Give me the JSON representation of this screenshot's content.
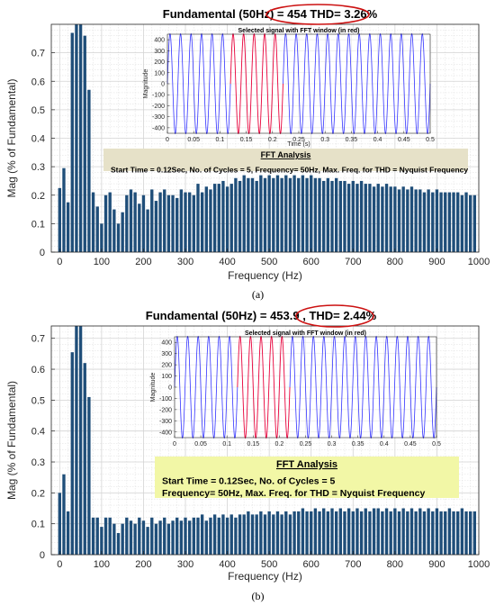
{
  "chart_data": [
    {
      "type": "bar",
      "title_left": "Fundamental (50Hz) = 454",
      "title_thd": "THD= 3.26%",
      "xlabel": "Frequency (Hz)",
      "ylabel": "Mag (% of Fundamental)",
      "xlim": [
        -20,
        1000
      ],
      "ylim": [
        0,
        0.8
      ],
      "xticks": [
        0,
        100,
        200,
        300,
        400,
        500,
        600,
        700,
        800,
        900,
        1000
      ],
      "yticks": [
        0,
        0.1,
        0.2,
        0.3,
        0.4,
        0.5,
        0.6,
        0.7
      ],
      "ytick_labels": [
        "0",
        "0.1",
        "0.2",
        "0.3",
        "0.4",
        "0.5",
        "0.6",
        "0.7"
      ],
      "bar_color": "#1f4e79",
      "grid": true,
      "caption": "(a)",
      "x": [
        0,
        10,
        20,
        30,
        40,
        50,
        60,
        70,
        80,
        90,
        100,
        110,
        120,
        130,
        140,
        150,
        160,
        170,
        180,
        190,
        200,
        210,
        220,
        230,
        240,
        250,
        260,
        270,
        280,
        290,
        300,
        310,
        320,
        330,
        340,
        350,
        360,
        370,
        380,
        390,
        400,
        410,
        420,
        430,
        440,
        450,
        460,
        470,
        480,
        490,
        500,
        510,
        520,
        530,
        540,
        550,
        560,
        570,
        580,
        590,
        600,
        610,
        620,
        630,
        640,
        650,
        660,
        670,
        680,
        690,
        700,
        710,
        720,
        730,
        740,
        750,
        760,
        770,
        780,
        790,
        800,
        810,
        820,
        830,
        840,
        850,
        860,
        870,
        880,
        890,
        900,
        910,
        920,
        930,
        940,
        950,
        960,
        970,
        980,
        990
      ],
      "values": [
        0.225,
        0.295,
        0.175,
        0.77,
        0.8,
        0.8,
        0.76,
        0.57,
        0.21,
        0.16,
        0.1,
        0.2,
        0.21,
        0.15,
        0.1,
        0.14,
        0.2,
        0.22,
        0.21,
        0.17,
        0.2,
        0.15,
        0.22,
        0.18,
        0.21,
        0.22,
        0.2,
        0.2,
        0.19,
        0.22,
        0.21,
        0.21,
        0.2,
        0.24,
        0.21,
        0.23,
        0.22,
        0.24,
        0.24,
        0.25,
        0.23,
        0.24,
        0.26,
        0.25,
        0.27,
        0.26,
        0.26,
        0.25,
        0.27,
        0.26,
        0.27,
        0.26,
        0.27,
        0.26,
        0.27,
        0.26,
        0.27,
        0.26,
        0.27,
        0.26,
        0.27,
        0.26,
        0.26,
        0.25,
        0.26,
        0.25,
        0.26,
        0.25,
        0.25,
        0.24,
        0.25,
        0.24,
        0.25,
        0.24,
        0.24,
        0.23,
        0.24,
        0.23,
        0.24,
        0.23,
        0.23,
        0.22,
        0.23,
        0.22,
        0.23,
        0.22,
        0.22,
        0.21,
        0.22,
        0.21,
        0.22,
        0.21,
        0.21,
        0.21,
        0.21,
        0.21,
        0.2,
        0.21,
        0.2,
        0.2
      ],
      "inset": {
        "title": "Selected signal with FFT window (in red)",
        "xlabel": "Time (s)",
        "ylabel": "Magnitude",
        "xlim": [
          0,
          0.5
        ],
        "ylim": [
          -450,
          450
        ],
        "xticks": [
          0,
          0.05,
          0.1,
          0.15,
          0.2,
          0.25,
          0.3,
          0.35,
          0.4,
          0.45,
          0.5
        ],
        "xtick_labels": [
          "0",
          "0.05",
          "0.1",
          "0.15",
          "0.2",
          "0.25",
          "0.3",
          "0.35",
          "0.4",
          "0.45",
          "0.5"
        ],
        "yticks": [
          -400,
          -300,
          -200,
          -100,
          0,
          100,
          200,
          300,
          400
        ],
        "frequency_hz": 50,
        "amplitude": 454,
        "window": [
          0.12,
          0.22
        ],
        "signal_color": "#3333ff",
        "window_color": "#e8003a"
      },
      "annotation": {
        "title": "FFT Analysis",
        "lines": [
          "Start Time = 0.12Sec, No. of Cycles = 5, Frequency= 50Hz, Max. Freq. for THD = Nyquist Frequency"
        ],
        "bg": "#e6e1c8"
      }
    },
    {
      "type": "bar",
      "title_left": "Fundamental (50Hz) = 453.9 ,",
      "title_thd": "THD= 2.44%",
      "xlabel": "Frequency (Hz)",
      "ylabel": "Mag (% of Fundamental)",
      "xlim": [
        -20,
        1000
      ],
      "ylim": [
        0,
        0.74
      ],
      "xticks": [
        0,
        100,
        200,
        300,
        400,
        500,
        600,
        700,
        800,
        900,
        1000
      ],
      "yticks": [
        0,
        0.1,
        0.2,
        0.3,
        0.4,
        0.5,
        0.6,
        0.7
      ],
      "ytick_labels": [
        "0",
        "0.1",
        "0.2",
        "0.3",
        "0.4",
        "0.5",
        "0.6",
        "0.7"
      ],
      "bar_color": "#1f4e79",
      "grid": true,
      "caption": "(b)",
      "x": [
        0,
        10,
        20,
        30,
        40,
        50,
        60,
        70,
        80,
        90,
        100,
        110,
        120,
        130,
        140,
        150,
        160,
        170,
        180,
        190,
        200,
        210,
        220,
        230,
        240,
        250,
        260,
        270,
        280,
        290,
        300,
        310,
        320,
        330,
        340,
        350,
        360,
        370,
        380,
        390,
        400,
        410,
        420,
        430,
        440,
        450,
        460,
        470,
        480,
        490,
        500,
        510,
        520,
        530,
        540,
        550,
        560,
        570,
        580,
        590,
        600,
        610,
        620,
        630,
        640,
        650,
        660,
        670,
        680,
        690,
        700,
        710,
        720,
        730,
        740,
        750,
        760,
        770,
        780,
        790,
        800,
        810,
        820,
        830,
        840,
        850,
        860,
        870,
        880,
        890,
        900,
        910,
        920,
        930,
        940,
        950,
        960,
        970,
        980,
        990
      ],
      "values": [
        0.2,
        0.26,
        0.14,
        0.655,
        0.74,
        0.74,
        0.62,
        0.51,
        0.12,
        0.12,
        0.09,
        0.12,
        0.12,
        0.1,
        0.07,
        0.1,
        0.12,
        0.11,
        0.1,
        0.12,
        0.11,
        0.09,
        0.12,
        0.1,
        0.11,
        0.12,
        0.1,
        0.11,
        0.12,
        0.11,
        0.12,
        0.11,
        0.12,
        0.12,
        0.13,
        0.11,
        0.12,
        0.13,
        0.12,
        0.13,
        0.12,
        0.13,
        0.12,
        0.13,
        0.13,
        0.14,
        0.13,
        0.13,
        0.14,
        0.13,
        0.14,
        0.13,
        0.14,
        0.13,
        0.14,
        0.13,
        0.14,
        0.14,
        0.15,
        0.14,
        0.14,
        0.15,
        0.14,
        0.15,
        0.14,
        0.15,
        0.14,
        0.15,
        0.14,
        0.15,
        0.14,
        0.15,
        0.14,
        0.15,
        0.14,
        0.15,
        0.15,
        0.14,
        0.15,
        0.14,
        0.15,
        0.14,
        0.15,
        0.14,
        0.15,
        0.14,
        0.15,
        0.14,
        0.15,
        0.14,
        0.15,
        0.14,
        0.14,
        0.15,
        0.14,
        0.14,
        0.15,
        0.14,
        0.14,
        0.14
      ],
      "inset": {
        "title": "Selected signal with FFT window (in red)",
        "xlabel": "",
        "ylabel": "Magnitude",
        "xlim": [
          0,
          0.5
        ],
        "ylim": [
          -450,
          450
        ],
        "xticks": [
          0,
          0.05,
          0.1,
          0.15,
          0.2,
          0.25,
          0.3,
          0.35,
          0.4,
          0.45,
          0.5
        ],
        "xtick_labels": [
          "0",
          "0.05",
          "0.1",
          "0.15",
          "0.2",
          "0.25",
          "0.3",
          "0.35",
          "0.4",
          "0.45",
          "0.5"
        ],
        "yticks": [
          -400,
          -300,
          -200,
          -100,
          0,
          100,
          200,
          300,
          400
        ],
        "frequency_hz": 50,
        "amplitude": 453.9,
        "window": [
          0.12,
          0.22
        ],
        "signal_color": "#3333ff",
        "window_color": "#e8003a"
      },
      "annotation": {
        "title": "FFT Analysis",
        "lines": [
          "Start Time = 0.12Sec,                         No. of Cycles = 5",
          "Frequency= 50Hz,  Max. Freq. for THD = Nyquist Frequency"
        ],
        "bg": "#f2f7a6"
      }
    }
  ]
}
